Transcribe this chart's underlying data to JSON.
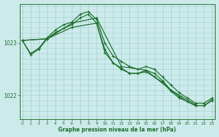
{
  "title": "Graphe pression niveau de la mer (hPa)",
  "background_color": "#cdeaea",
  "plot_bg_color": "#cdeaea",
  "grid_color": "#9dcfcf",
  "line_color": "#1a6e2a",
  "x_ticks": [
    0,
    1,
    2,
    3,
    4,
    5,
    6,
    7,
    8,
    9,
    10,
    11,
    12,
    13,
    14,
    15,
    16,
    17,
    18,
    19,
    20,
    21,
    22,
    23
  ],
  "xlim": [
    -0.3,
    23.3
  ],
  "ylim": [
    1021.55,
    1023.75
  ],
  "yticks": [
    1022,
    1023
  ],
  "series1_x": [
    0,
    1,
    2,
    3,
    4,
    5,
    6,
    7,
    8,
    9,
    10,
    11,
    12,
    13,
    14,
    15,
    16,
    17,
    18,
    19,
    20,
    21,
    22,
    23
  ],
  "series1_y": [
    1023.05,
    1022.8,
    1022.9,
    1023.1,
    1023.25,
    1023.35,
    1023.4,
    1023.55,
    1023.6,
    1023.45,
    1023.0,
    1022.75,
    1022.65,
    1022.55,
    1022.5,
    1022.55,
    1022.5,
    1022.35,
    1022.2,
    1022.05,
    1021.95,
    1021.85,
    1021.85,
    1021.95
  ],
  "series2_x": [
    0,
    1,
    2,
    3,
    4,
    5,
    6,
    7,
    8,
    9,
    10,
    11,
    12,
    13,
    14,
    15,
    16,
    17,
    18,
    19,
    20,
    21,
    22,
    23
  ],
  "series2_y": [
    1023.05,
    1022.78,
    1022.88,
    1023.08,
    1023.2,
    1023.28,
    1023.35,
    1023.48,
    1023.55,
    1023.38,
    1022.88,
    1022.62,
    1022.52,
    1022.42,
    1022.42,
    1022.48,
    1022.42,
    1022.28,
    1022.1,
    1021.98,
    1021.88,
    1021.8,
    1021.8,
    1021.92
  ],
  "series3_x": [
    0,
    3,
    6,
    9,
    12,
    15,
    18,
    21
  ],
  "series3_y": [
    1023.05,
    1023.08,
    1023.38,
    1023.48,
    1022.55,
    1022.48,
    1022.1,
    1021.82
  ],
  "series4_x": [
    0,
    3,
    6,
    9,
    10,
    11,
    12,
    13,
    14,
    15,
    16,
    17,
    18,
    19,
    20,
    21,
    22,
    23
  ],
  "series4_y": [
    1023.05,
    1023.08,
    1023.3,
    1023.38,
    1022.82,
    1022.62,
    1022.5,
    1022.42,
    1022.42,
    1022.45,
    1022.35,
    1022.25,
    1022.08,
    1021.95,
    1021.88,
    1021.8,
    1021.8,
    1021.9
  ]
}
